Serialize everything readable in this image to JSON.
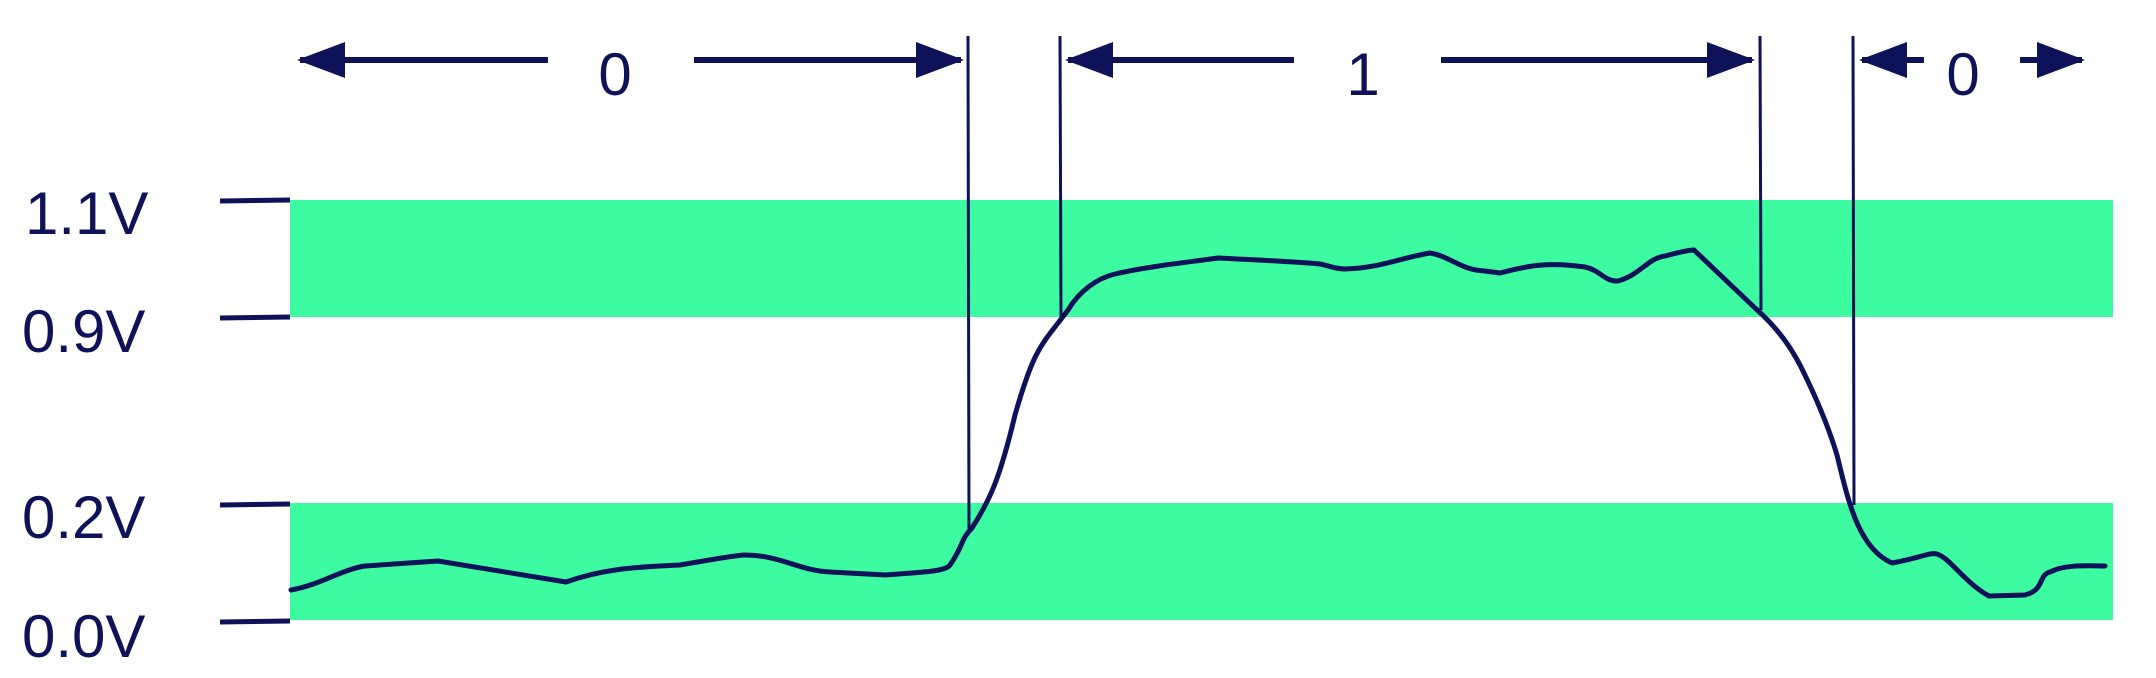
{
  "colors": {
    "band": "#3dfba0",
    "ink": "#0e1258",
    "background": "#ffffff"
  },
  "voltage_labels": {
    "v_1_1": "1.1V",
    "v_0_9": "0.9V",
    "v_0_2": "0.2V",
    "v_0_0": "0.0V"
  },
  "bit_labels": {
    "bit_0_left": "0",
    "bit_1": "1",
    "bit_0_right": "0"
  },
  "bands": {
    "high_logic": {
      "from_v": 0.9,
      "to_v": 1.1
    },
    "low_logic": {
      "from_v": 0.0,
      "to_v": 0.2
    }
  }
}
